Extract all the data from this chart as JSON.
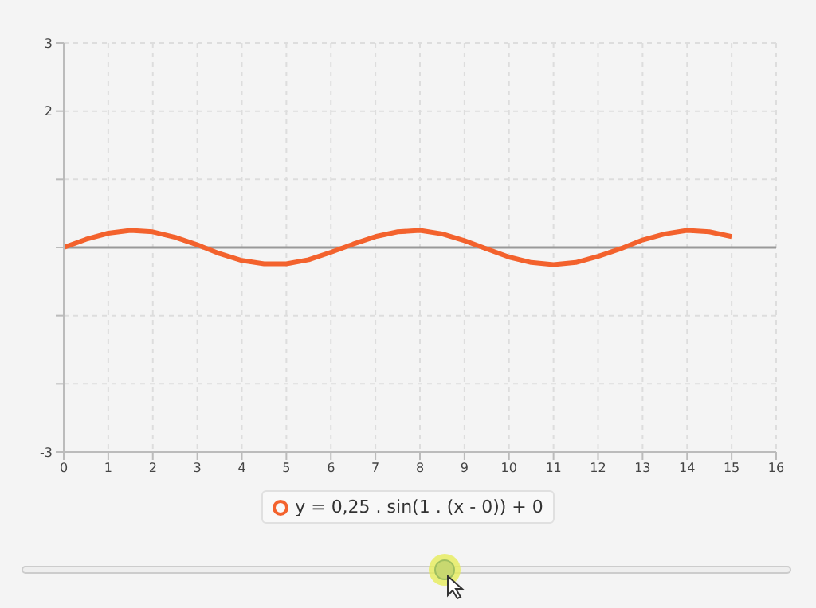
{
  "chart_data": {
    "type": "line",
    "x": [
      0,
      0.5,
      1,
      1.5,
      2,
      2.5,
      3,
      3.5,
      4,
      4.5,
      5,
      5.5,
      6,
      6.5,
      7,
      7.5,
      8,
      8.5,
      9,
      9.5,
      10,
      10.5,
      11,
      11.5,
      12,
      12.5,
      13,
      13.5,
      14,
      14.5,
      15
    ],
    "series": [
      {
        "name": "y = 0,25 . sin(1 . (x - 0)) + 0",
        "color": "#f3622d",
        "values": [
          0,
          0.12,
          0.21,
          0.25,
          0.23,
          0.15,
          0.04,
          -0.09,
          -0.19,
          -0.24,
          -0.24,
          -0.18,
          -0.07,
          0.05,
          0.16,
          0.23,
          0.25,
          0.2,
          0.1,
          -0.02,
          -0.14,
          -0.22,
          -0.25,
          -0.22,
          -0.13,
          -0.02,
          0.11,
          0.2,
          0.25,
          0.23,
          0.16
        ]
      }
    ],
    "xlim": [
      0,
      16
    ],
    "xticks": [
      0,
      1,
      2,
      3,
      4,
      5,
      6,
      7,
      8,
      9,
      10,
      11,
      12,
      13,
      14,
      15,
      16
    ],
    "ylim": [
      -3,
      3
    ],
    "yticks": [
      3,
      2,
      {
        "value": 1,
        "label": null
      },
      {
        "value": 0,
        "label": null
      },
      {
        "value": -1,
        "label": null
      },
      {
        "value": -2,
        "label": null
      },
      -3
    ],
    "ref_lines": [
      {
        "axis": "y",
        "value": 0,
        "color": "#999999"
      }
    ],
    "grid": true,
    "legend": "bottom"
  }
}
